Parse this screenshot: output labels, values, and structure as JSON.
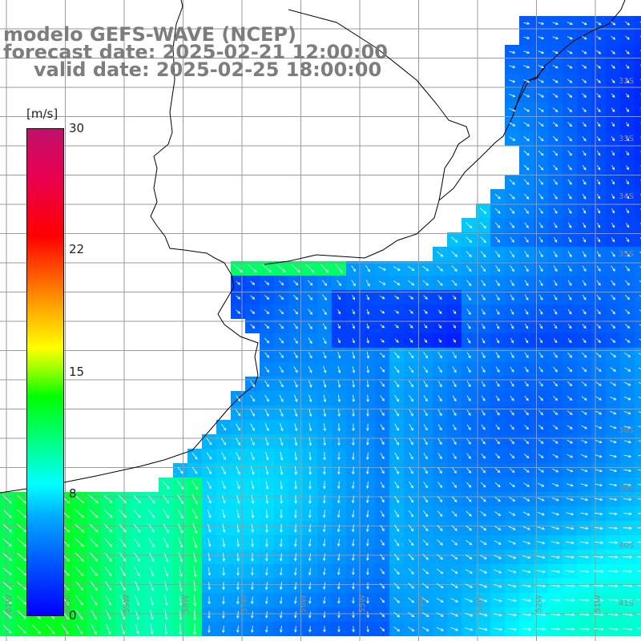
{
  "title": {
    "line1": "modelo GEFS-WAVE (NCEP)",
    "line2": "forecast date: 2025-02-21 12:00:00",
    "line3": "valid date: 2025-02-25 18:00:00"
  },
  "colorbar": {
    "unit": "[m/s]",
    "min": 0,
    "max": 30,
    "tick_labels": [
      "30",
      "22",
      "15",
      "8",
      "0"
    ],
    "tick_values": [
      30,
      22,
      15,
      8,
      0
    ]
  },
  "map": {
    "lat_labels": [
      "32S",
      "33S",
      "34S",
      "35S",
      "38S",
      "39S",
      "40S",
      "41S"
    ],
    "lon_labels": [
      "61W",
      "60W",
      "59W",
      "58W",
      "57W",
      "56W",
      "55W",
      "54W",
      "53W",
      "52W",
      "51W"
    ],
    "colors": {
      "land": "#ffffff",
      "grid": "#9a9a9a",
      "coast": "#000000",
      "vectors": "#ffffff"
    }
  }
}
